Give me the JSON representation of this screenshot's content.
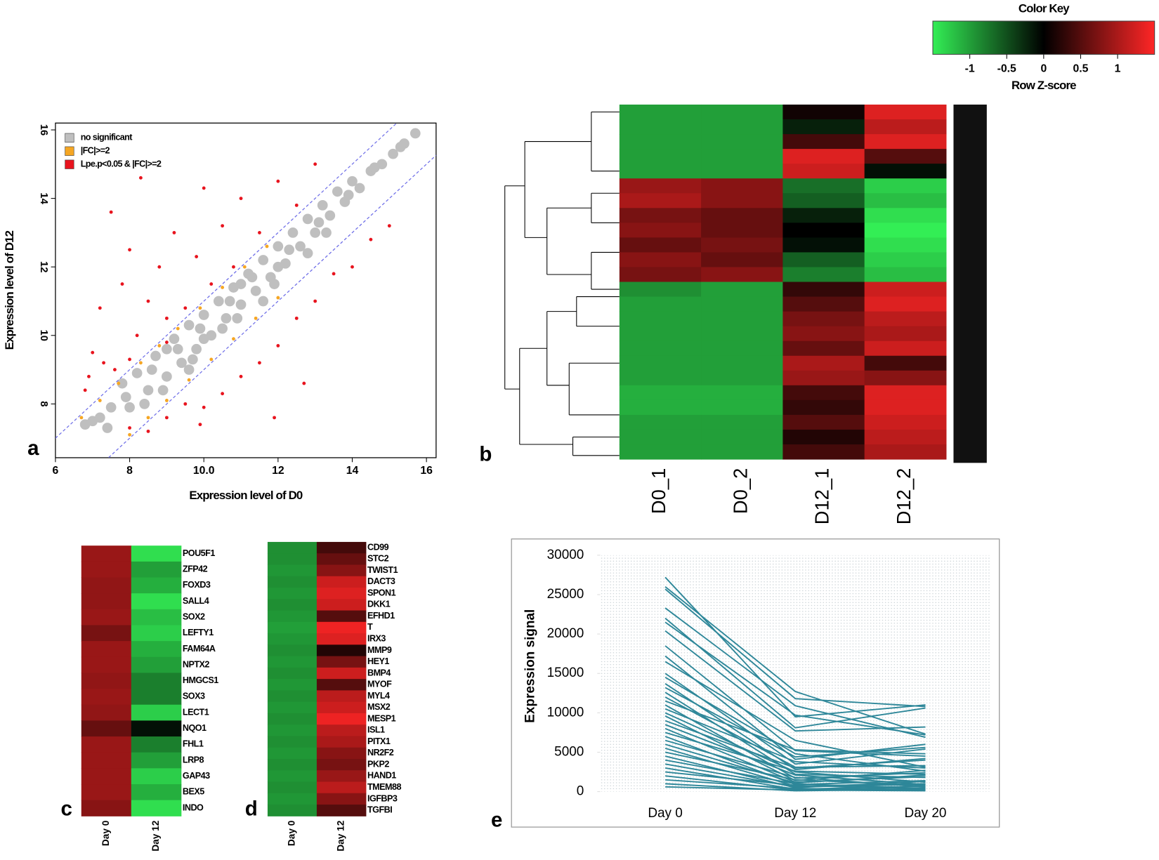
{
  "chart_data": [
    {
      "type": "scatter",
      "panel_label": "a",
      "xlabel": "Expression level of D0",
      "ylabel": "Expression level of D12",
      "xlim": [
        6,
        16.26
      ],
      "ylim": [
        6.43,
        16.2
      ],
      "xticks": [
        6,
        8,
        {
          "value": 10,
          "label": "10.0"
        },
        12,
        14,
        16
      ],
      "yticks": [
        8,
        10,
        12,
        14,
        16
      ],
      "legend": "top-left",
      "reference_lines": [
        {
          "slope": 1,
          "intercept": 1,
          "color": "#6f6fe8"
        },
        {
          "slope": 1,
          "intercept": -1,
          "color": "#6f6fe8"
        }
      ],
      "series": [
        {
          "name": "no significant",
          "color": "#bfbfbf",
          "x": [
            7.2,
            7.5,
            7.8,
            8.0,
            8.2,
            8.5,
            8.7,
            9.0,
            9.2,
            9.4,
            9.6,
            9.8,
            10.0,
            10.2,
            10.4,
            10.6,
            10.8,
            11.0,
            11.2,
            11.4,
            11.6,
            11.8,
            12.0,
            12.2,
            12.4,
            12.6,
            12.8,
            13.0,
            13.2,
            13.4,
            13.6,
            13.8,
            14.0,
            14.2,
            14.5,
            14.8,
            15.1,
            15.4,
            15.7,
            8.4,
            9.0,
            10.0,
            11.0,
            12.0,
            7.0,
            6.8,
            9.6,
            10.5,
            11.6,
            12.8,
            7.4,
            7.9,
            8.6,
            9.3,
            9.9,
            10.7,
            11.3,
            12.3,
            13.1,
            13.9,
            14.6,
            15.3,
            8.9,
            9.7,
            10.9,
            11.9,
            13.3
          ],
          "values": [
            7.6,
            7.9,
            8.6,
            7.9,
            8.9,
            8.4,
            9.4,
            8.8,
            9.9,
            9.2,
            10.3,
            9.6,
            10.6,
            10.0,
            11.0,
            10.5,
            11.4,
            10.9,
            11.8,
            11.3,
            12.2,
            11.7,
            12.6,
            12.1,
            13.0,
            12.6,
            13.4,
            13.0,
            13.8,
            13.5,
            14.2,
            13.9,
            14.5,
            14.3,
            14.8,
            15.0,
            15.3,
            15.6,
            15.9,
            8.0,
            9.6,
            9.9,
            11.5,
            12.0,
            7.5,
            7.4,
            9.0,
            10.2,
            11.0,
            12.4,
            7.3,
            8.2,
            9.0,
            9.6,
            10.2,
            11.0,
            11.7,
            12.5,
            13.3,
            14.1,
            14.9,
            15.5,
            8.4,
            9.3,
            10.5,
            11.5,
            13.0
          ]
        },
        {
          "name": " |FC|>=2",
          "color": "#f5a623",
          "x": [
            6.7,
            7.2,
            7.7,
            8.3,
            8.8,
            9.3,
            9.9,
            10.5,
            11.1,
            11.7,
            8.0,
            8.5,
            9.0,
            9.6,
            10.2,
            10.8,
            11.4,
            12.0
          ],
          "values": [
            7.6,
            8.1,
            8.6,
            9.2,
            9.7,
            10.2,
            10.8,
            11.4,
            12.0,
            12.6,
            7.1,
            7.6,
            8.1,
            8.7,
            9.3,
            9.9,
            10.5,
            11.1
          ]
        },
        {
          "name": "Lpe.p<0.05 & |FC|>=2",
          "color": "#e8141e",
          "x": [
            6.8,
            7.0,
            7.2,
            7.5,
            7.6,
            7.8,
            8.0,
            8.2,
            8.3,
            8.5,
            8.8,
            9.0,
            9.2,
            9.5,
            9.8,
            10.0,
            10.2,
            10.5,
            10.8,
            11.0,
            11.5,
            12.0,
            12.5,
            13.0,
            6.9,
            7.3,
            8.0,
            9.0,
            8.0,
            8.5,
            9.0,
            9.5,
            10.0,
            10.5,
            11.0,
            11.5,
            12.0,
            12.5,
            12.7,
            13.0,
            13.5,
            14.0,
            14.5,
            15.0,
            9.9,
            11.9
          ],
          "values": [
            8.4,
            9.5,
            10.8,
            13.6,
            9.0,
            11.5,
            12.5,
            10.0,
            14.6,
            11.0,
            12.0,
            9.8,
            13.0,
            10.8,
            12.3,
            14.3,
            11.5,
            13.2,
            12.0,
            14.0,
            13.0,
            14.5,
            13.8,
            15.0,
            8.8,
            9.2,
            9.3,
            10.5,
            7.3,
            7.2,
            7.6,
            8.0,
            7.9,
            8.3,
            8.8,
            9.2,
            9.7,
            10.5,
            8.6,
            11.0,
            11.8,
            12.0,
            12.8,
            13.2,
            7.4,
            7.6
          ]
        }
      ]
    },
    {
      "type": "heatmap",
      "panel_label": "b",
      "columns": [
        "D0_1",
        "D0_2",
        "D12_1",
        "D12_2"
      ],
      "zlim": [
        -1.5,
        1.5
      ],
      "colors": [
        "#33ee55",
        "#000000",
        "#ff2626"
      ],
      "values": [
        [
          -1,
          -1,
          0.1,
          1.3
        ],
        [
          -1,
          -1,
          -0.2,
          1.1
        ],
        [
          -1,
          -1,
          0.4,
          1.3
        ],
        [
          -1,
          -1,
          1.3,
          0.5
        ],
        [
          -1,
          -1,
          1.2,
          -0.1
        ],
        [
          0.9,
          0.8,
          -0.7,
          -1.3
        ],
        [
          1,
          0.8,
          -0.6,
          -1.2
        ],
        [
          0.7,
          0.6,
          -0.2,
          -1.4
        ],
        [
          0.8,
          0.6,
          0,
          -1.5
        ],
        [
          0.6,
          0.7,
          -0.1,
          -1.4
        ],
        [
          0.8,
          0.6,
          -0.6,
          -1.3
        ],
        [
          0.7,
          0.8,
          -0.8,
          -1.2
        ],
        [
          -0.9,
          -1,
          0.3,
          1.2
        ],
        [
          -1,
          -1,
          0.5,
          1.3
        ],
        [
          -1,
          -1,
          0.7,
          1.1
        ],
        [
          -1,
          -1,
          0.8,
          1.0
        ],
        [
          -1,
          -1,
          0.6,
          1.2
        ],
        [
          -1,
          -1,
          1.0,
          0.4
        ],
        [
          -1,
          -1,
          0.9,
          0.8
        ],
        [
          -1.1,
          -1.1,
          0.4,
          1.3
        ],
        [
          -1.1,
          -1.1,
          0.3,
          1.3
        ],
        [
          -1,
          -1,
          0.5,
          1.2
        ],
        [
          -1,
          -1,
          0.2,
          1.1
        ],
        [
          -1,
          -1,
          0.4,
          1.0
        ]
      ],
      "color_key": {
        "title": "Color Key",
        "xlabel": "Row Z-score",
        "xlim": [
          -1.5,
          1.5
        ],
        "xticks": [
          -1,
          -0.5,
          0,
          0.5,
          1
        ]
      }
    },
    {
      "type": "heatmap",
      "panel_label": "c",
      "columns": [
        "Day 0",
        "Day 12"
      ],
      "zlim": [
        -1.5,
        1.5
      ],
      "colors": [
        "#33ee55",
        "#000000",
        "#ff2626"
      ],
      "rows": [
        "POU5F1",
        "ZFP42",
        "FOXD3",
        "SALL4",
        "SOX2",
        "LEFTY1",
        "FAM64A",
        "NPTX2",
        "HMGCS1",
        "SOX3",
        "LECT1",
        "NQO1",
        "FHL1",
        "LRP8",
        "GAP43",
        "BEX5",
        "INDO"
      ],
      "values": [
        [
          0.9,
          -1.4
        ],
        [
          0.9,
          -1.0
        ],
        [
          0.85,
          -1.1
        ],
        [
          0.85,
          -1.4
        ],
        [
          0.9,
          -1.2
        ],
        [
          0.7,
          -1.3
        ],
        [
          0.9,
          -1.1
        ],
        [
          0.9,
          -1.0
        ],
        [
          0.85,
          -0.8
        ],
        [
          0.9,
          -0.8
        ],
        [
          0.85,
          -1.3
        ],
        [
          0.6,
          -0.1
        ],
        [
          0.9,
          -0.8
        ],
        [
          0.9,
          -1.0
        ],
        [
          0.9,
          -1.3
        ],
        [
          0.9,
          -1.1
        ],
        [
          0.8,
          -1.4
        ]
      ]
    },
    {
      "type": "heatmap",
      "panel_label": "d",
      "columns": [
        "Day 0",
        "Day 12"
      ],
      "zlim": [
        -1.5,
        1.5
      ],
      "colors": [
        "#33ee55",
        "#000000",
        "#ff2626"
      ],
      "rows": [
        "CD99",
        "STC2",
        "TWIST1",
        "DACT3",
        "SPON1",
        "DKK1",
        "EFHD1",
        "T",
        "IRX3",
        "MMP9",
        "HEY1",
        "BMP4",
        "MYOF",
        "MYL4",
        "MSX2",
        "MESP1",
        "ISL1",
        "PITX1",
        "NR2F2",
        "PKP2",
        "HAND1",
        "TMEM88",
        "IGFBP3",
        "TGFBI"
      ],
      "values": [
        [
          -0.9,
          0.4
        ],
        [
          -0.9,
          0.6
        ],
        [
          -0.95,
          0.8
        ],
        [
          -0.9,
          1.2
        ],
        [
          -0.95,
          1.3
        ],
        [
          -0.9,
          1.2
        ],
        [
          -0.95,
          0.5
        ],
        [
          -1.0,
          1.4
        ],
        [
          -0.95,
          1.3
        ],
        [
          -0.9,
          0.2
        ],
        [
          -0.95,
          0.7
        ],
        [
          -0.9,
          1.2
        ],
        [
          -0.95,
          0.5
        ],
        [
          -0.9,
          1.1
        ],
        [
          -0.95,
          1.2
        ],
        [
          -0.9,
          1.4
        ],
        [
          -0.95,
          1.1
        ],
        [
          -0.9,
          1.0
        ],
        [
          -0.95,
          0.8
        ],
        [
          -0.9,
          0.7
        ],
        [
          -0.95,
          0.9
        ],
        [
          -0.9,
          1.1
        ],
        [
          -0.95,
          0.8
        ],
        [
          -0.9,
          0.5
        ]
      ]
    },
    {
      "type": "line",
      "panel_label": "e",
      "ylabel": "Expression signal",
      "categories": [
        "Day 0",
        "Day 12",
        "Day 20"
      ],
      "ylim": [
        0,
        30000
      ],
      "yticks": [
        0,
        5000,
        10000,
        15000,
        20000,
        25000,
        30000
      ],
      "color": "#2e8799",
      "series": [
        {
          "values": [
            27200,
            9500,
            11000
          ]
        },
        {
          "values": [
            26000,
            12700,
            7300
          ]
        },
        {
          "values": [
            25700,
            11800,
            10800
          ]
        },
        {
          "values": [
            23300,
            10900,
            6900
          ]
        },
        {
          "values": [
            22000,
            8100,
            10600
          ]
        },
        {
          "values": [
            21500,
            9700,
            7200
          ]
        },
        {
          "values": [
            20400,
            7700,
            8200
          ]
        },
        {
          "values": [
            18500,
            5200,
            4500
          ]
        },
        {
          "values": [
            17200,
            4100,
            6000
          ]
        },
        {
          "values": [
            16500,
            6500,
            3100
          ]
        },
        {
          "values": [
            15000,
            3500,
            5400
          ]
        },
        {
          "values": [
            14500,
            4800,
            2600
          ]
        },
        {
          "values": [
            13700,
            2800,
            4200
          ]
        },
        {
          "values": [
            13200,
            4400,
            5600
          ]
        },
        {
          "values": [
            12600,
            2200,
            1800
          ]
        },
        {
          "values": [
            12000,
            3100,
            3300
          ]
        },
        {
          "values": [
            11500,
            5300,
            4800
          ]
        },
        {
          "values": [
            11000,
            1700,
            2400
          ]
        },
        {
          "values": [
            10500,
            3800,
            3000
          ]
        },
        {
          "values": [
            10000,
            2500,
            1200
          ]
        },
        {
          "values": [
            9600,
            1400,
            2700
          ]
        },
        {
          "values": [
            9000,
            3000,
            4000
          ]
        },
        {
          "values": [
            8500,
            2100,
            900
          ]
        },
        {
          "values": [
            8000,
            1200,
            1900
          ]
        },
        {
          "values": [
            7500,
            2600,
            2200
          ]
        },
        {
          "values": [
            7000,
            900,
            1400
          ]
        },
        {
          "values": [
            6500,
            1800,
            600
          ]
        },
        {
          "values": [
            6000,
            1100,
            2100
          ]
        },
        {
          "values": [
            5500,
            700,
            1000
          ]
        },
        {
          "values": [
            5000,
            1500,
            800
          ]
        },
        {
          "values": [
            4500,
            500,
            1300
          ]
        },
        {
          "values": [
            4000,
            1000,
            400
          ]
        },
        {
          "values": [
            3500,
            600,
            900
          ]
        },
        {
          "values": [
            3000,
            300,
            700
          ]
        },
        {
          "values": [
            2500,
            800,
            300
          ]
        },
        {
          "values": [
            2000,
            200,
            500
          ]
        },
        {
          "values": [
            1500,
            400,
            200
          ]
        },
        {
          "values": [
            1000,
            100,
            300
          ]
        },
        {
          "values": [
            600,
            200,
            100
          ]
        }
      ]
    }
  ]
}
